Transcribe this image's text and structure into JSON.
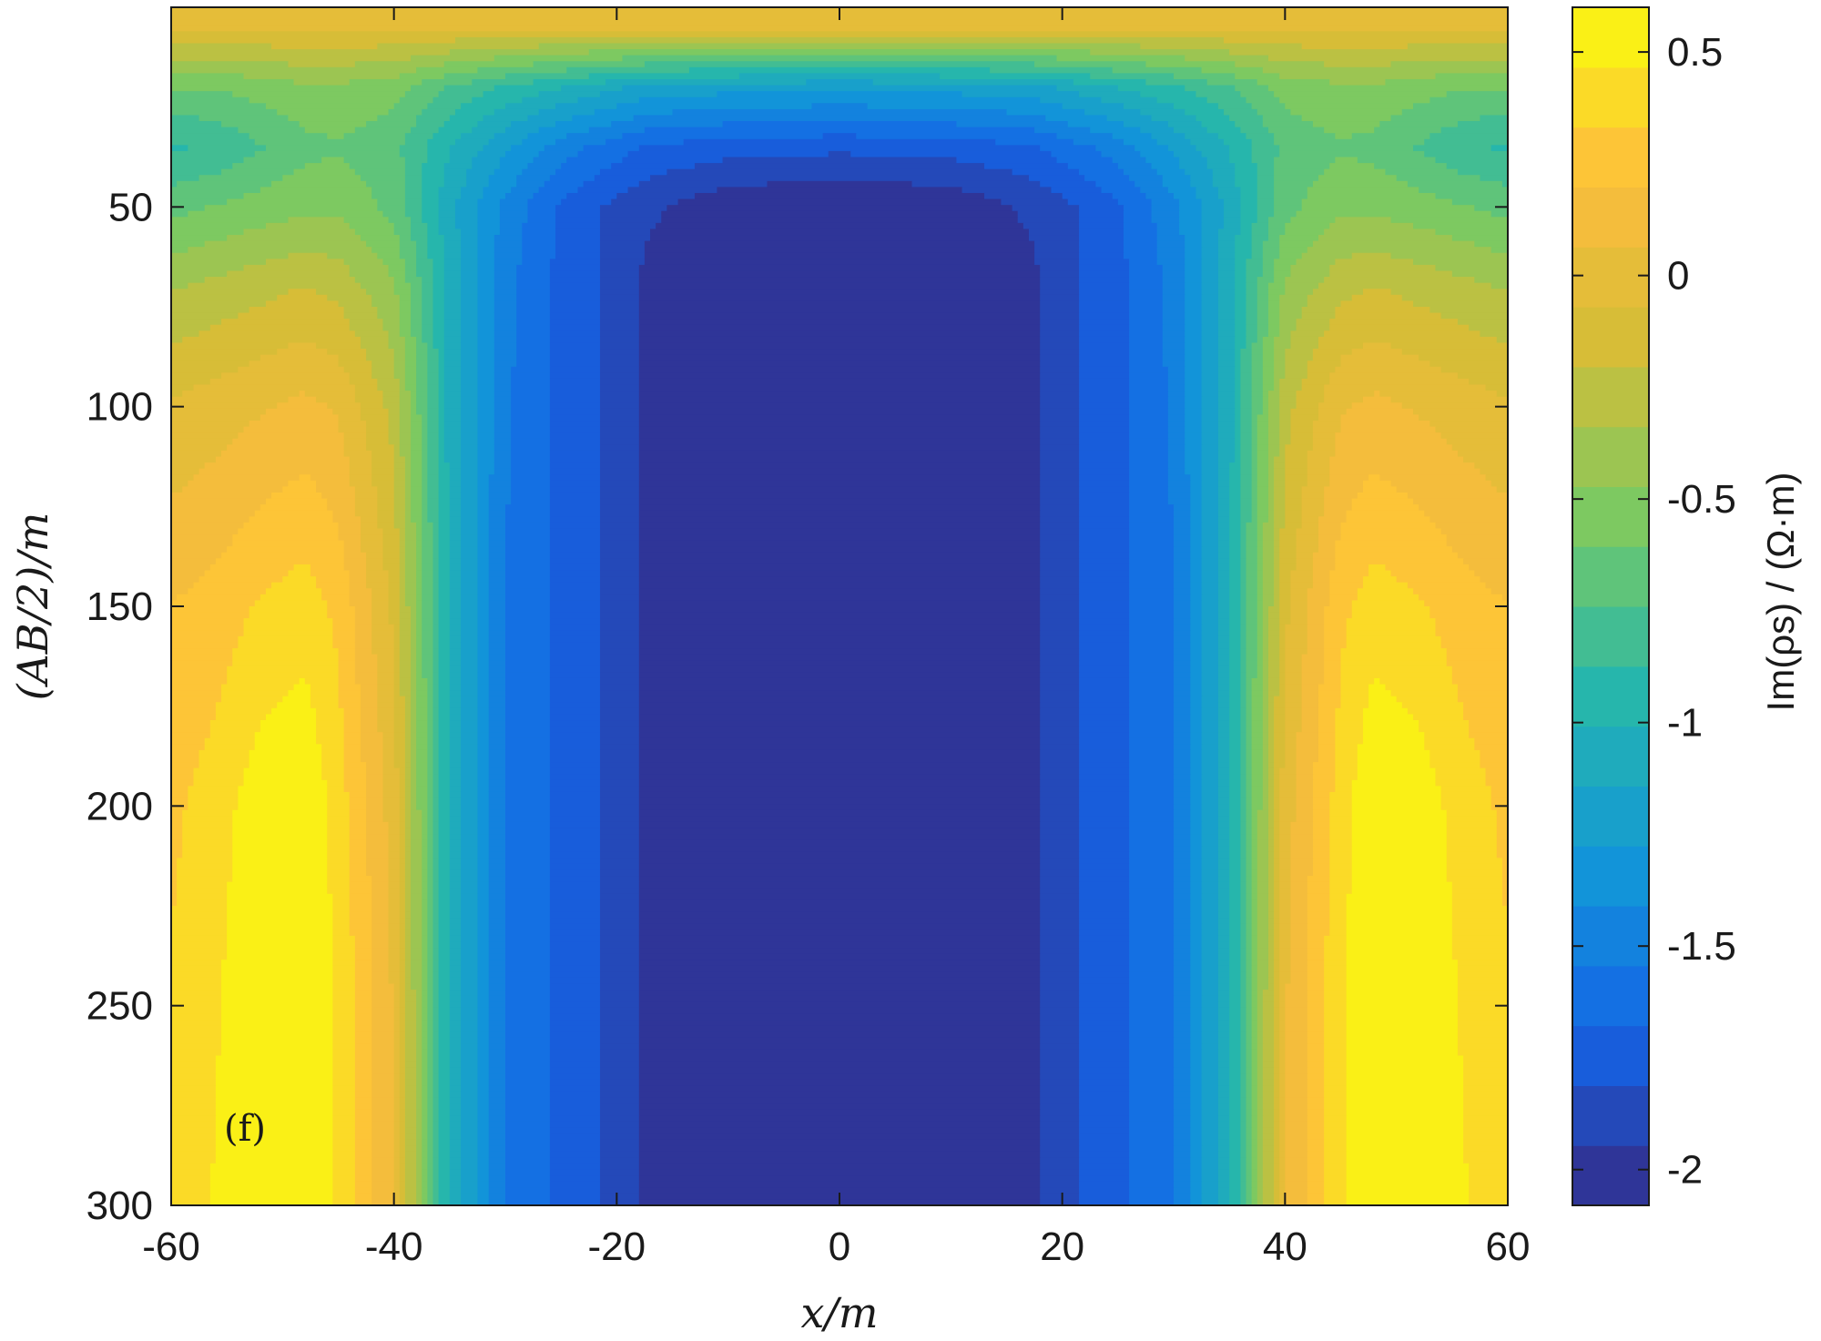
{
  "chart_data": {
    "type": "heatmap",
    "subtype": "filled-contour",
    "panel_label": "(f)",
    "xlabel": "x/m",
    "ylabel": "(AB/2)/m",
    "xlim": [
      -60,
      60
    ],
    "ylim": [
      0,
      300
    ],
    "y_reversed": true,
    "x_ticks": [
      -60,
      -40,
      -20,
      0,
      20,
      40,
      60
    ],
    "y_ticks": [
      50,
      100,
      150,
      200,
      250,
      300
    ],
    "colorbar": {
      "label": "Im(ρs) / (Ω·m)",
      "range": [
        -2.08,
        0.6
      ],
      "ticks": [
        0.5,
        0,
        -0.5,
        -1,
        -1.5,
        -2
      ],
      "colormap": "parula"
    },
    "approximate_field": {
      "description_of_values": "Im(rho_s) in Ohm·m; symmetric about x = 0",
      "x": [
        0,
        10,
        17,
        20,
        25,
        30,
        35,
        40,
        45,
        48,
        52,
        56,
        60
      ],
      "y": [
        5,
        20,
        35,
        50,
        70,
        100,
        150,
        200,
        250,
        300
      ],
      "z": [
        [
          -0.05,
          -0.05,
          -0.05,
          -0.05,
          -0.05,
          -0.05,
          -0.05,
          -0.05,
          -0.05,
          -0.05,
          -0.05,
          -0.05,
          -0.05
        ],
        [
          -1.25,
          -1.22,
          -1.18,
          -1.12,
          -1.0,
          -0.9,
          -0.75,
          -0.55,
          -0.5,
          -0.5,
          -0.55,
          -0.6,
          -0.6
        ],
        [
          -1.78,
          -1.75,
          -1.7,
          -1.62,
          -1.48,
          -1.25,
          -1.0,
          -0.7,
          -0.62,
          -0.65,
          -0.75,
          -0.85,
          -0.9
        ],
        [
          -2.08,
          -2.05,
          -1.92,
          -1.85,
          -1.7,
          -1.45,
          -1.1,
          -0.65,
          -0.5,
          -0.5,
          -0.55,
          -0.6,
          -0.65
        ],
        [
          -2.08,
          -2.05,
          -2.0,
          -1.85,
          -1.72,
          -1.5,
          -1.05,
          -0.45,
          -0.25,
          -0.2,
          -0.25,
          -0.3,
          -0.35
        ],
        [
          -2.08,
          -2.05,
          -2.0,
          -1.85,
          -1.72,
          -1.52,
          -1.05,
          -0.25,
          0.05,
          0.1,
          0.05,
          0.0,
          -0.05
        ],
        [
          -2.08,
          -2.05,
          -2.0,
          -1.85,
          -1.72,
          -1.55,
          -1.05,
          -0.1,
          0.3,
          0.4,
          0.35,
          0.25,
          0.2
        ],
        [
          -2.08,
          -2.05,
          -2.0,
          -1.85,
          -1.72,
          -1.55,
          -1.05,
          0.0,
          0.4,
          0.6,
          0.55,
          0.4,
          0.3
        ],
        [
          -2.08,
          -2.05,
          -2.0,
          -1.85,
          -1.72,
          -1.55,
          -1.05,
          0.05,
          0.45,
          0.6,
          0.6,
          0.45,
          0.35
        ],
        [
          -2.08,
          -2.05,
          -2.0,
          -1.85,
          -1.72,
          -1.55,
          -1.05,
          0.05,
          0.45,
          0.6,
          0.6,
          0.48,
          0.35
        ]
      ]
    }
  }
}
